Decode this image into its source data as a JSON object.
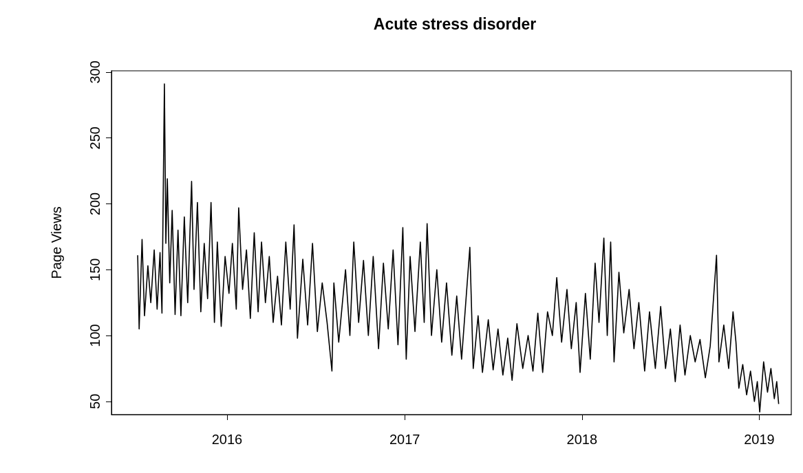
{
  "chart_data": {
    "type": "line",
    "title": "Acute stress disorder",
    "ylabel": "Page Views",
    "color": "#000000",
    "x": [
      "2015-07-01",
      "2015-07-04",
      "2015-07-10",
      "2015-07-15",
      "2015-07-22",
      "2015-07-28",
      "2015-08-04",
      "2015-08-10",
      "2015-08-16",
      "2015-08-20",
      "2015-08-25",
      "2015-08-28",
      "2015-08-31",
      "2015-09-05",
      "2015-09-10",
      "2015-09-16",
      "2015-09-22",
      "2015-09-28",
      "2015-10-05",
      "2015-10-12",
      "2015-10-20",
      "2015-10-25",
      "2015-11-01",
      "2015-11-08",
      "2015-11-15",
      "2015-11-22",
      "2015-11-29",
      "2015-12-06",
      "2015-12-12",
      "2015-12-20",
      "2015-12-28",
      "2016-01-05",
      "2016-01-12",
      "2016-01-20",
      "2016-01-25",
      "2016-02-02",
      "2016-02-10",
      "2016-02-18",
      "2016-02-26",
      "2016-03-05",
      "2016-03-12",
      "2016-03-20",
      "2016-03-28",
      "2016-04-05",
      "2016-04-14",
      "2016-04-22",
      "2016-05-01",
      "2016-05-10",
      "2016-05-18",
      "2016-05-25",
      "2016-06-05",
      "2016-06-15",
      "2016-06-25",
      "2016-07-05",
      "2016-07-15",
      "2016-07-25",
      "2016-08-04",
      "2016-08-08",
      "2016-08-18",
      "2016-09-01",
      "2016-09-10",
      "2016-09-18",
      "2016-09-28",
      "2016-10-08",
      "2016-10-18",
      "2016-10-28",
      "2016-11-08",
      "2016-11-18",
      "2016-11-28",
      "2016-12-08",
      "2016-12-18",
      "2016-12-28",
      "2017-01-04",
      "2017-01-12",
      "2017-01-22",
      "2017-02-02",
      "2017-02-10",
      "2017-02-16",
      "2017-02-25",
      "2017-03-08",
      "2017-03-18",
      "2017-03-28",
      "2017-04-08",
      "2017-04-18",
      "2017-04-28",
      "2017-05-15",
      "2017-05-22",
      "2017-06-01",
      "2017-06-10",
      "2017-06-22",
      "2017-07-02",
      "2017-07-12",
      "2017-07-22",
      "2017-08-01",
      "2017-08-10",
      "2017-08-20",
      "2017-09-01",
      "2017-09-12",
      "2017-09-22",
      "2017-10-02",
      "2017-10-12",
      "2017-10-22",
      "2017-11-01",
      "2017-11-10",
      "2017-11-20",
      "2017-12-01",
      "2017-12-10",
      "2017-12-20",
      "2017-12-28",
      "2018-01-08",
      "2018-01-18",
      "2018-01-28",
      "2018-02-05",
      "2018-02-15",
      "2018-02-22",
      "2018-03-01",
      "2018-03-08",
      "2018-03-18",
      "2018-03-28",
      "2018-04-08",
      "2018-04-18",
      "2018-04-28",
      "2018-05-10",
      "2018-05-20",
      "2018-06-01",
      "2018-06-12",
      "2018-06-22",
      "2018-07-02",
      "2018-07-12",
      "2018-07-22",
      "2018-08-01",
      "2018-08-12",
      "2018-08-22",
      "2018-09-01",
      "2018-09-12",
      "2018-09-22",
      "2018-10-05",
      "2018-10-10",
      "2018-10-20",
      "2018-10-30",
      "2018-11-08",
      "2018-11-14",
      "2018-11-20",
      "2018-11-28",
      "2018-12-06",
      "2018-12-14",
      "2018-12-22",
      "2018-12-28",
      "2019-01-02",
      "2019-01-10",
      "2019-01-18",
      "2019-01-25",
      "2019-02-01",
      "2019-02-06",
      "2019-02-10"
    ],
    "values": [
      161,
      105,
      173,
      115,
      153,
      125,
      165,
      120,
      163,
      117,
      291,
      170,
      219,
      140,
      195,
      116,
      180,
      115,
      190,
      125,
      217,
      135,
      201,
      118,
      170,
      128,
      201,
      110,
      171,
      107,
      160,
      132,
      170,
      120,
      197,
      135,
      165,
      113,
      178,
      118,
      171,
      125,
      160,
      110,
      145,
      108,
      171,
      120,
      184,
      98,
      158,
      108,
      170,
      103,
      140,
      110,
      73,
      140,
      95,
      150,
      100,
      171,
      110,
      157,
      100,
      160,
      90,
      155,
      105,
      165,
      93,
      182,
      82,
      160,
      103,
      171,
      110,
      185,
      100,
      150,
      95,
      140,
      85,
      130,
      82,
      167,
      75,
      115,
      72,
      112,
      74,
      105,
      70,
      98,
      66,
      109,
      75,
      100,
      73,
      117,
      72,
      118,
      100,
      144,
      95,
      135,
      90,
      125,
      72,
      132,
      82,
      155,
      110,
      174,
      100,
      171,
      80,
      148,
      102,
      135,
      90,
      125,
      73,
      118,
      75,
      122,
      75,
      105,
      65,
      108,
      70,
      100,
      80,
      97,
      68,
      92,
      161,
      80,
      108,
      75,
      118,
      95,
      60,
      78,
      55,
      73,
      50,
      65,
      42,
      80,
      57,
      75,
      52,
      65,
      48
    ],
    "xlim": [
      "2015-05-08",
      "2019-03-08"
    ],
    "xticks": [
      "2016",
      "2017",
      "2018",
      "2019"
    ],
    "ylim": [
      40,
      301
    ],
    "yticks": [
      50,
      100,
      150,
      200,
      250,
      300
    ]
  }
}
